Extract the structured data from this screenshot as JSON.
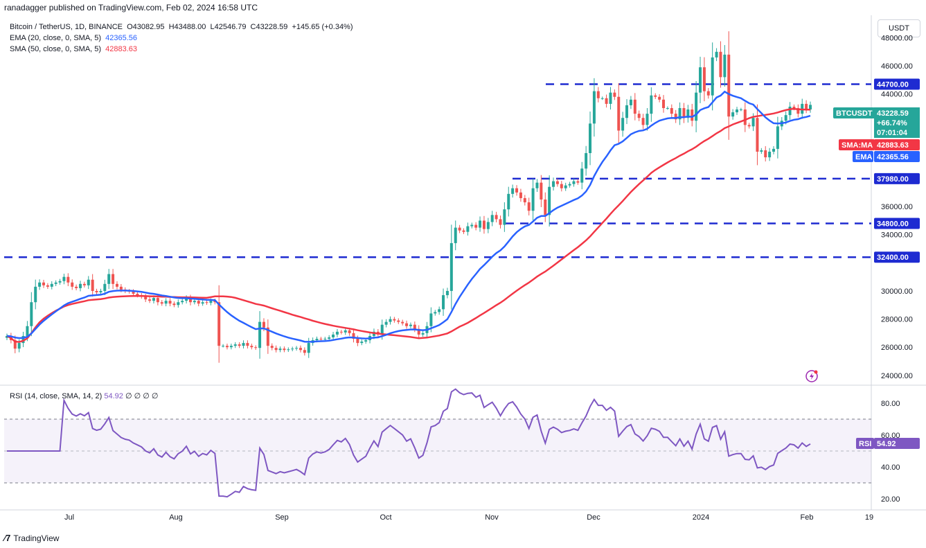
{
  "header": {
    "published": "ranadagger published on TradingView.com, Feb 02, 2024 16:58 UTC"
  },
  "legend": {
    "symbol": "Bitcoin / TetherUS, 1D, BINANCE",
    "open": "O43082.95",
    "high": "H43488.00",
    "low": "L42546.79",
    "close": "C43228.59",
    "change": "+145.65 (+0.34%)",
    "ema_label": "EMA (20, close, 0, SMA, 5)",
    "ema_value": "42365.56",
    "sma_label": "SMA (50, close, 0, SMA, 5)",
    "sma_value": "42883.63"
  },
  "currency_button": "USDT",
  "price_axis": [
    "48000.00",
    "46000.00",
    "44000.00",
    "36000.00",
    "34000.00",
    "30000.00",
    "28000.00",
    "26000.00",
    "24000.00"
  ],
  "levels": [
    {
      "label": "44700.00",
      "value": 44700
    },
    {
      "label": "37980.00",
      "value": 37980
    },
    {
      "label": "34800.00",
      "value": 34800
    },
    {
      "label": "32400.00",
      "value": 32400
    }
  ],
  "price_tags": {
    "symbol": "BTCUSDT",
    "price": "43228.59",
    "pct": "+66.74%",
    "countdown": "07:01:04",
    "sma_tag": "SMA:MA",
    "sma_val": "42883.63",
    "ema_tag": "EMA",
    "ema_val": "42365.56"
  },
  "time_axis": [
    "Jul",
    "Aug",
    "Sep",
    "Oct",
    "Nov",
    "Dec",
    "2024",
    "Feb",
    "19"
  ],
  "rsi": {
    "legend": "RSI (14, close, SMA, 14, 2)",
    "value": "54.92",
    "extra": "∅ ∅ ∅ ∅",
    "tag": "RSI",
    "axis": [
      "80.00",
      "60.00",
      "40.00",
      "20.00"
    ],
    "overbought": 70,
    "oversold": 30
  },
  "footer": {
    "brand": "TradingView"
  },
  "colors": {
    "ema": "#2962ff",
    "sma": "#f23645",
    "up": "#26a69a",
    "down": "#ef5350",
    "level": "#1e2bd1",
    "rsi": "#7e57c2",
    "price_tag": "#26a69a"
  },
  "chart_data": {
    "type": "candlestick",
    "y_range": [
      23300,
      49600
    ],
    "series_close": [
      26800,
      26500,
      25900,
      26300,
      26800,
      27500,
      29200,
      30300,
      30600,
      30400,
      30300,
      30500,
      30600,
      30700,
      31000,
      30600,
      30300,
      30200,
      30500,
      30400,
      30800,
      30000,
      29900,
      30000,
      30500,
      31200,
      30500,
      30300,
      30100,
      30000,
      29950,
      29800,
      29700,
      29600,
      29400,
      29300,
      29500,
      29200,
      29100,
      29300,
      29100,
      29000,
      29200,
      29300,
      29500,
      29200,
      29300,
      29100,
      29200,
      29150,
      29300,
      29200,
      26100,
      26100,
      26000,
      26100,
      26200,
      26100,
      26300,
      26100,
      26000,
      25950,
      27800,
      27400,
      26100,
      25950,
      25800,
      25900,
      25800,
      25850,
      25900,
      25950,
      25800,
      25600,
      26300,
      26500,
      26600,
      26550,
      26600,
      26700,
      26900,
      27100,
      27050,
      27200,
      27000,
      26600,
      26300,
      26400,
      26500,
      26800,
      27100,
      26900,
      27600,
      27800,
      28000,
      27900,
      27800,
      27700,
      27500,
      27600,
      27300,
      26900,
      27000,
      27500,
      28400,
      28500,
      28700,
      29700,
      30000,
      33400,
      34500,
      34300,
      34200,
      34600,
      34700,
      34500,
      35000,
      34400,
      34900,
      35400,
      35100,
      34700,
      35800,
      36900,
      37300,
      37000,
      36600,
      36300,
      35700,
      37300,
      37700,
      36500,
      35400,
      37400,
      37800,
      37600,
      37300,
      37500,
      37600,
      37800,
      37700,
      38700,
      39800,
      41900,
      44200,
      43700,
      43700,
      43300,
      44100,
      43800,
      41400,
      42300,
      43200,
      43600,
      42600,
      42300,
      41800,
      42600,
      43900,
      43800,
      43600,
      43000,
      43000,
      42600,
      42200,
      43000,
      42300,
      42900,
      42100,
      44100,
      45900,
      44200,
      43900,
      46600,
      47000,
      45200,
      46800,
      42400,
      42700,
      42900,
      42900,
      41800,
      41700,
      42300,
      39900,
      40000,
      39500,
      39900,
      40100,
      41700,
      42100,
      42500,
      43100,
      43000,
      42600,
      43300,
      42900,
      43228
    ]
  }
}
